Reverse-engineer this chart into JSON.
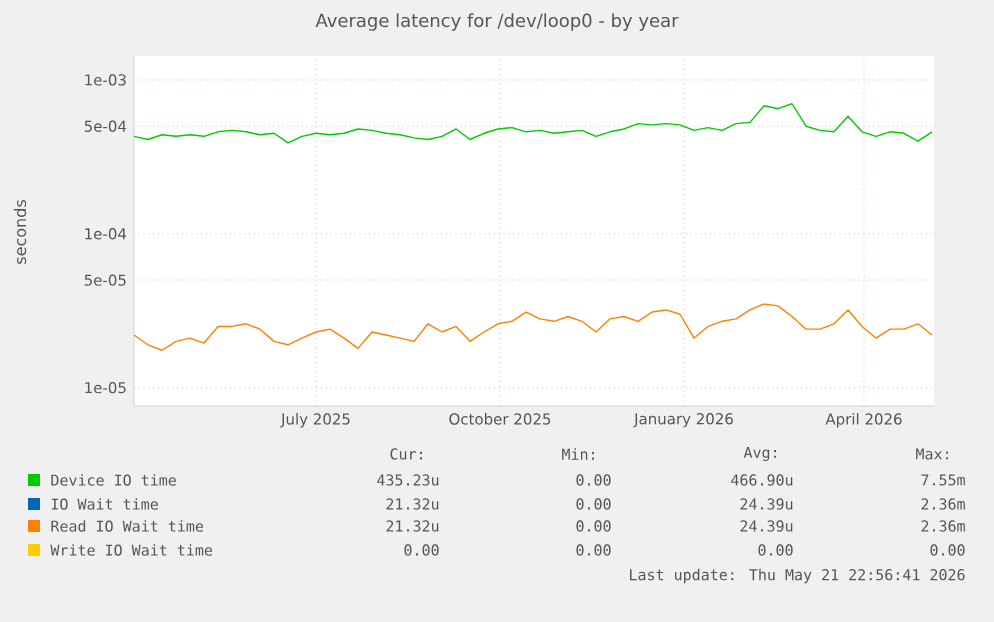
{
  "chart_data": {
    "type": "line",
    "title": "Average latency for /dev/loop0 - by year",
    "ylabel": "seconds",
    "log": true,
    "grid": true,
    "legend": "bottom",
    "line_style": "solid",
    "marker": "none",
    "xlim": [
      "2025-04-16",
      "2026-05-21"
    ],
    "xticks": [
      {
        "value": "2025-07-16",
        "label": "July 2025"
      },
      {
        "value": "2025-10-16",
        "label": "October 2025"
      },
      {
        "value": "2026-01-16",
        "label": "January 2026"
      },
      {
        "value": "2026-04-16",
        "label": "April 2026"
      }
    ],
    "ylim": [
      7.6e-06,
      0.00143
    ],
    "yticks": [
      {
        "value": 1e-05,
        "label": "1e-05"
      },
      {
        "value": 5e-05,
        "label": "5e-05"
      },
      {
        "value": 0.0001,
        "label": "1e-04"
      },
      {
        "value": 0.0005,
        "label": "5e-04"
      },
      {
        "value": 0.001,
        "label": "1e-03"
      }
    ],
    "x": [
      "2025-04-16",
      "2025-04-23",
      "2025-04-30",
      "2025-05-07",
      "2025-05-14",
      "2025-05-21",
      "2025-05-28",
      "2025-06-04",
      "2025-06-11",
      "2025-06-18",
      "2025-06-25",
      "2025-07-02",
      "2025-07-09",
      "2025-07-16",
      "2025-07-23",
      "2025-07-30",
      "2025-08-06",
      "2025-08-13",
      "2025-08-20",
      "2025-08-27",
      "2025-09-03",
      "2025-09-10",
      "2025-09-17",
      "2025-09-24",
      "2025-10-01",
      "2025-10-08",
      "2025-10-15",
      "2025-10-22",
      "2025-10-29",
      "2025-11-05",
      "2025-11-12",
      "2025-11-19",
      "2025-11-26",
      "2025-12-03",
      "2025-12-10",
      "2025-12-17",
      "2025-12-24",
      "2025-12-31",
      "2026-01-07",
      "2026-01-14",
      "2026-01-21",
      "2026-01-28",
      "2026-02-04",
      "2026-02-11",
      "2026-02-18",
      "2026-02-25",
      "2026-03-04",
      "2026-03-11",
      "2026-03-18",
      "2026-03-25",
      "2026-04-01",
      "2026-04-08",
      "2026-04-15",
      "2026-04-22",
      "2026-04-29",
      "2026-05-06",
      "2026-05-13",
      "2026-05-20"
    ],
    "series": [
      {
        "name": "Device IO time",
        "color": "#00cc00",
        "values": [
          0.00043,
          0.00041,
          0.00044,
          0.00043,
          0.00044,
          0.00043,
          0.00046,
          0.00047,
          0.00046,
          0.00044,
          0.00045,
          0.00039,
          0.00043,
          0.00045,
          0.00044,
          0.00045,
          0.00048,
          0.00047,
          0.00045,
          0.00044,
          0.00042,
          0.00041,
          0.00043,
          0.00048,
          0.00041,
          0.00045,
          0.00048,
          0.00049,
          0.00046,
          0.00047,
          0.00045,
          0.00046,
          0.00047,
          0.00043,
          0.00046,
          0.00048,
          0.00052,
          0.00051,
          0.00052,
          0.00051,
          0.00047,
          0.00049,
          0.00047,
          0.00052,
          0.00053,
          0.00068,
          0.00065,
          0.0007,
          0.0005,
          0.00047,
          0.00046,
          0.00058,
          0.00046,
          0.00043,
          0.00046,
          0.00045,
          0.0004,
          0.00046
        ]
      },
      {
        "name": "IO Wait time",
        "color": "#0066b3",
        "values": [
          null,
          null,
          null,
          null,
          null,
          null,
          null,
          null,
          null,
          null,
          null,
          null,
          null,
          null,
          null,
          null,
          null,
          null,
          null,
          null,
          null,
          null,
          null,
          null,
          null,
          null,
          null,
          null,
          null,
          null,
          null,
          null,
          null,
          null,
          null,
          null,
          null,
          null,
          null,
          null,
          null,
          null,
          null,
          null,
          null,
          null,
          null,
          null,
          null,
          null,
          null,
          null,
          null,
          null,
          null,
          null,
          null,
          null
        ]
      },
      {
        "name": "Read IO Wait time",
        "color": "#ff8000",
        "values": [
          2.2e-05,
          1.9e-05,
          1.75e-05,
          2e-05,
          2.1e-05,
          1.95e-05,
          2.5e-05,
          2.5e-05,
          2.6e-05,
          2.4e-05,
          2e-05,
          1.9e-05,
          2.1e-05,
          2.3e-05,
          2.4e-05,
          2.1e-05,
          1.8e-05,
          2.3e-05,
          2.2e-05,
          2.1e-05,
          2e-05,
          2.6e-05,
          2.3e-05,
          2.5e-05,
          2e-05,
          2.3e-05,
          2.6e-05,
          2.7e-05,
          3.1e-05,
          2.8e-05,
          2.7e-05,
          2.9e-05,
          2.7e-05,
          2.3e-05,
          2.8e-05,
          2.9e-05,
          2.7e-05,
          3.1e-05,
          3.2e-05,
          3e-05,
          2.1e-05,
          2.5e-05,
          2.7e-05,
          2.8e-05,
          3.2e-05,
          3.5e-05,
          3.4e-05,
          2.9e-05,
          2.4e-05,
          2.4e-05,
          2.6e-05,
          3.2e-05,
          2.5e-05,
          2.1e-05,
          2.4e-05,
          2.4e-05,
          2.6e-05,
          2.2e-05
        ]
      },
      {
        "name": "Write IO Wait time",
        "color": "#ffcc00",
        "values": [
          null,
          null,
          null,
          null,
          null,
          null,
          null,
          null,
          null,
          null,
          null,
          null,
          null,
          null,
          null,
          null,
          null,
          null,
          null,
          null,
          null,
          null,
          null,
          null,
          null,
          null,
          null,
          null,
          null,
          null,
          null,
          null,
          null,
          null,
          null,
          null,
          null,
          null,
          null,
          null,
          null,
          null,
          null,
          null,
          null,
          null,
          null,
          null,
          null,
          null,
          null,
          null,
          null,
          null,
          null,
          null,
          null,
          null
        ]
      }
    ],
    "annotations": [
      "Cur:",
      "Min:",
      "Avg:",
      "Max:",
      "435.23u",
      "0.00",
      "466.90u",
      "7.55m",
      "21.32u",
      "0.00",
      "24.39u",
      "2.36m",
      "21.32u",
      "0.00",
      "24.39u",
      "2.36m",
      "0.00",
      "0.00",
      "0.00",
      "0.00",
      "Last update: Thu May 21 22:56:41 2026"
    ]
  }
}
